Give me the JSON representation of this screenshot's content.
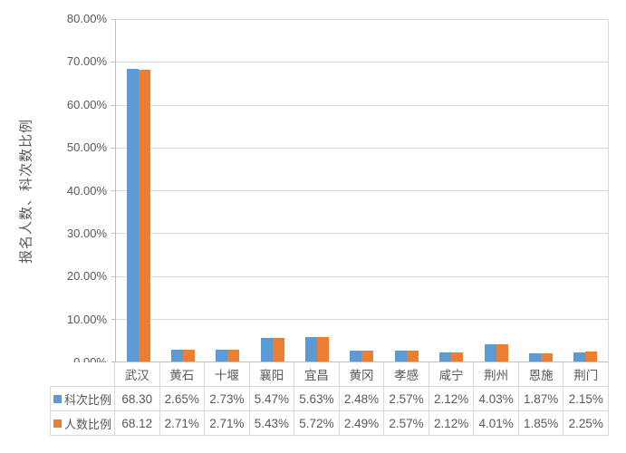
{
  "page": {
    "background": "#ffffff",
    "text_color": "#595959",
    "gridline_color": "#D9D9D9",
    "axis_line_color": "#BFBFBF",
    "table_border_color": "#D9D9D9"
  },
  "chart_data": {
    "type": "bar",
    "title": "",
    "xlabel": "",
    "ylabel": "报名人数、科次数比例",
    "ylim": [
      0,
      80
    ],
    "ytick_step": 10,
    "yticks": [
      "80.00%",
      "70.00%",
      "60.00%",
      "50.00%",
      "40.00%",
      "30.00%",
      "20.00%",
      "10.00%",
      "0.00%"
    ],
    "grid": true,
    "legend_position": "data-table-keys",
    "categories": [
      "武汉",
      "黄石",
      "十堰",
      "襄阳",
      "宜昌",
      "黄冈",
      "孝感",
      "咸宁",
      "荆州",
      "恩施",
      "荆门"
    ],
    "series": [
      {
        "name": "科次比例",
        "color": "#5B9BD5",
        "values": [
          68.3,
          2.65,
          2.73,
          5.47,
          5.63,
          2.48,
          2.57,
          2.12,
          4.03,
          1.87,
          2.15
        ],
        "display_values": [
          "68.30",
          "2.65%",
          "2.73%",
          "5.47%",
          "5.63%",
          "2.48%",
          "2.57%",
          "2.12%",
          "4.03%",
          "1.87%",
          "2.15%"
        ]
      },
      {
        "name": "人数比例",
        "color": "#ED7D31",
        "values": [
          68.12,
          2.71,
          2.71,
          5.43,
          5.72,
          2.49,
          2.57,
          2.12,
          4.01,
          1.85,
          2.25
        ],
        "display_values": [
          "68.12",
          "2.71%",
          "2.71%",
          "5.43%",
          "5.72%",
          "2.49%",
          "2.57%",
          "2.12%",
          "4.01%",
          "1.85%",
          "2.25%"
        ]
      }
    ]
  }
}
